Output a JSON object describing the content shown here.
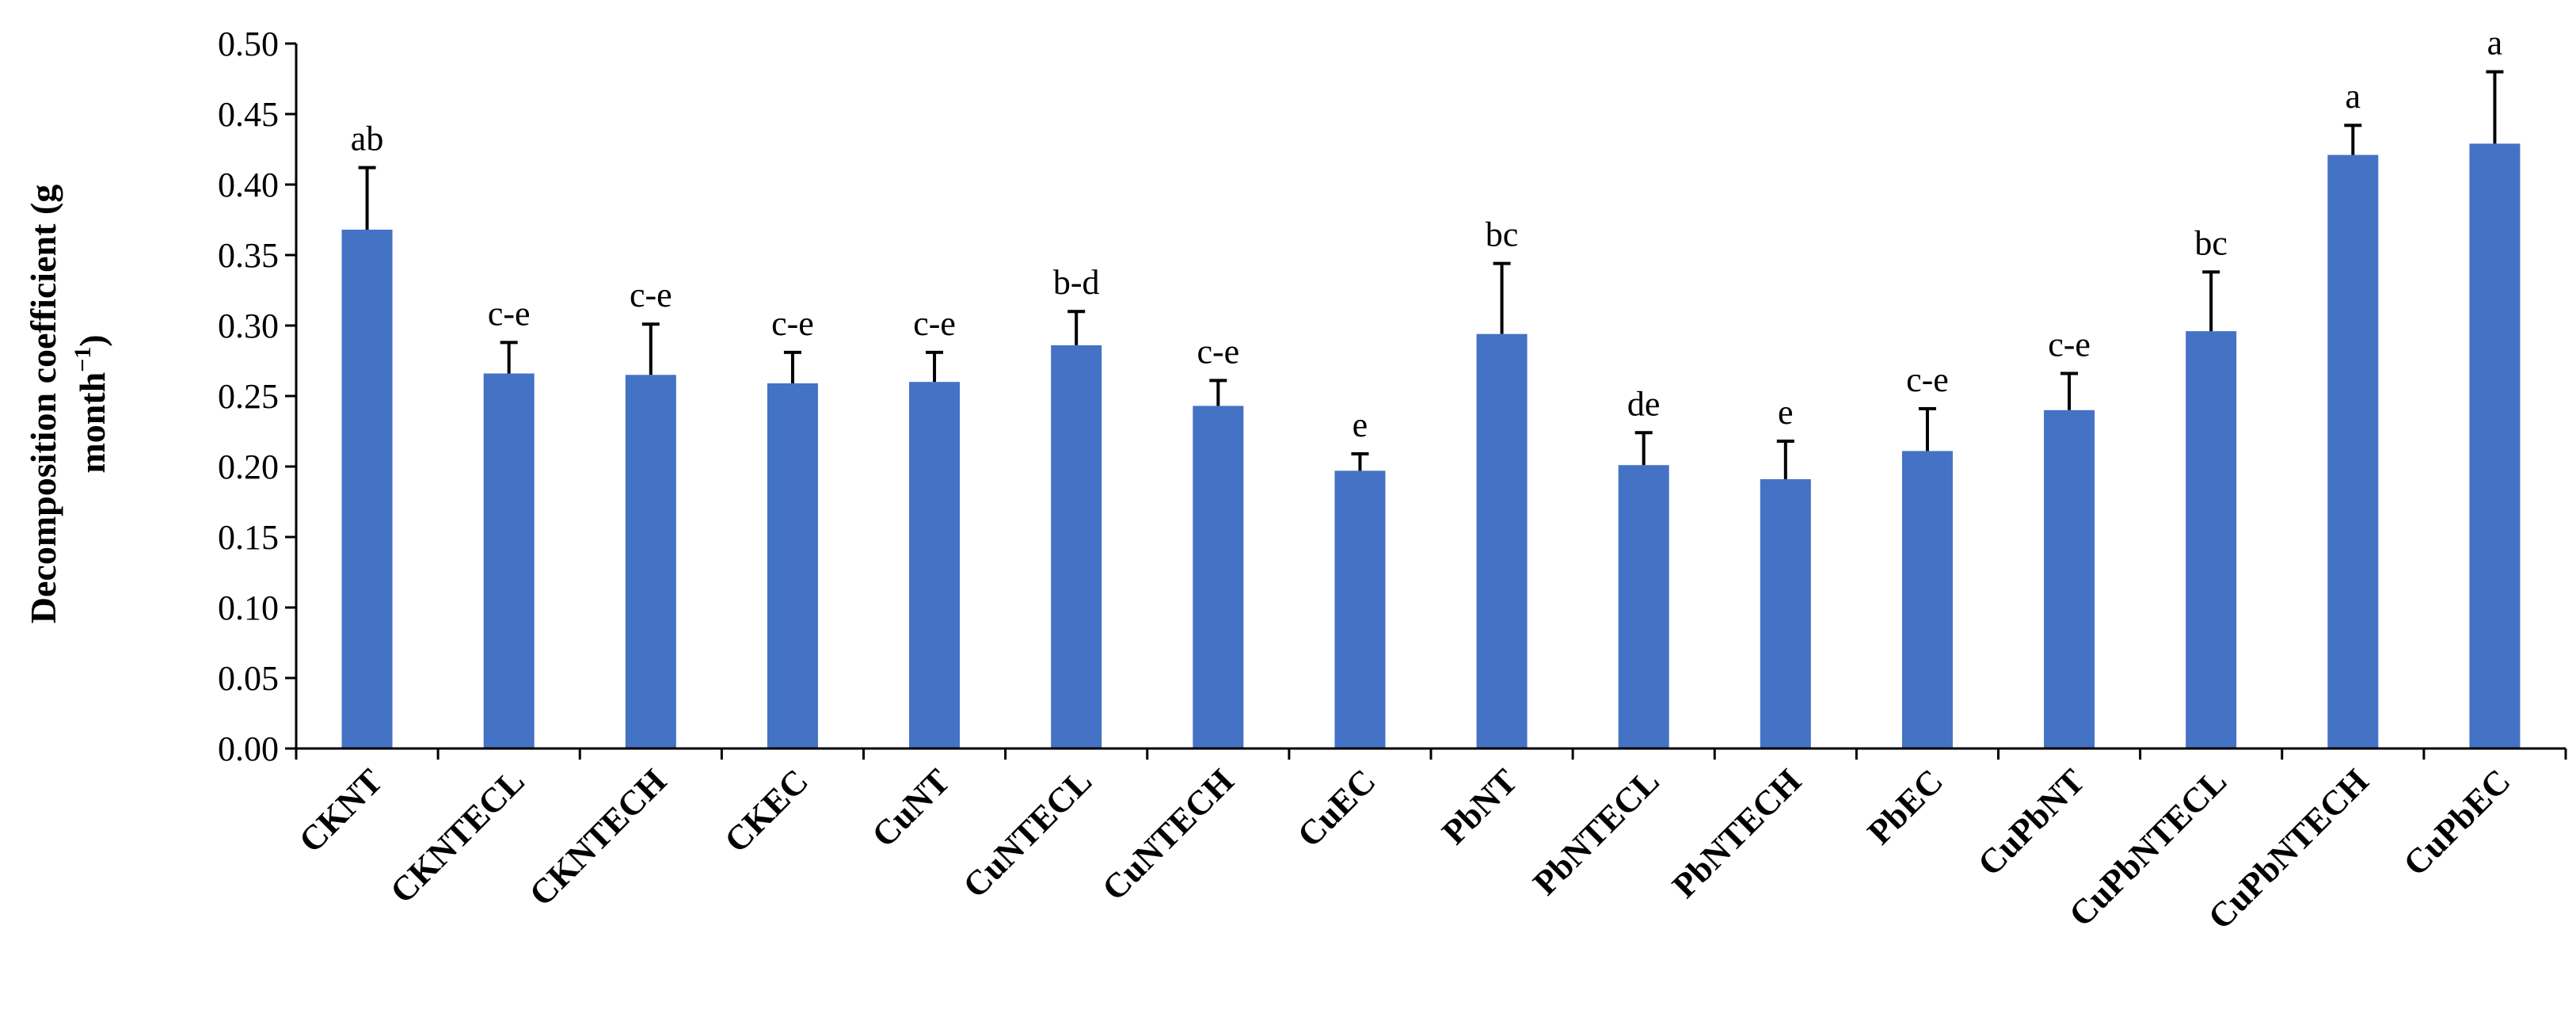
{
  "chart_data": {
    "type": "bar",
    "categories": [
      "CKNT",
      "CKNTECL",
      "CKNTECH",
      "CKEC",
      "CuNT",
      "CuNTECL",
      "CuNTECH",
      "CuEC",
      "PbNT",
      "PbNTECL",
      "PbNTECH",
      "PbEC",
      "CuPbNT",
      "CuPbNTECL",
      "CuPbNTECH",
      "CuPbEC"
    ],
    "values": [
      0.368,
      0.266,
      0.265,
      0.259,
      0.26,
      0.286,
      0.243,
      0.197,
      0.294,
      0.201,
      0.191,
      0.211,
      0.24,
      0.296,
      0.421,
      0.429
    ],
    "errors": [
      0.044,
      0.022,
      0.036,
      0.022,
      0.021,
      0.024,
      0.018,
      0.012,
      0.05,
      0.023,
      0.027,
      0.03,
      0.026,
      0.042,
      0.021,
      0.051
    ],
    "significance": [
      "ab",
      "c-e",
      "c-e",
      "c-e",
      "c-e",
      "b-d",
      "c-e",
      "e",
      "bc",
      "de",
      "e",
      "c-e",
      "c-e",
      "bc",
      "a",
      "a"
    ],
    "ylabel_line1": "Decomposition coefficient (g",
    "ylabel_line2": "month",
    "ylabel_sup": "−1",
    "ylabel_close": ")",
    "yticks": [
      "0.00",
      "0.05",
      "0.10",
      "0.15",
      "0.20",
      "0.25",
      "0.30",
      "0.35",
      "0.40",
      "0.45",
      "0.50"
    ],
    "ylim": [
      0,
      0.5
    ],
    "bar_color": "#4472C4",
    "grid": false,
    "legend": "none"
  }
}
